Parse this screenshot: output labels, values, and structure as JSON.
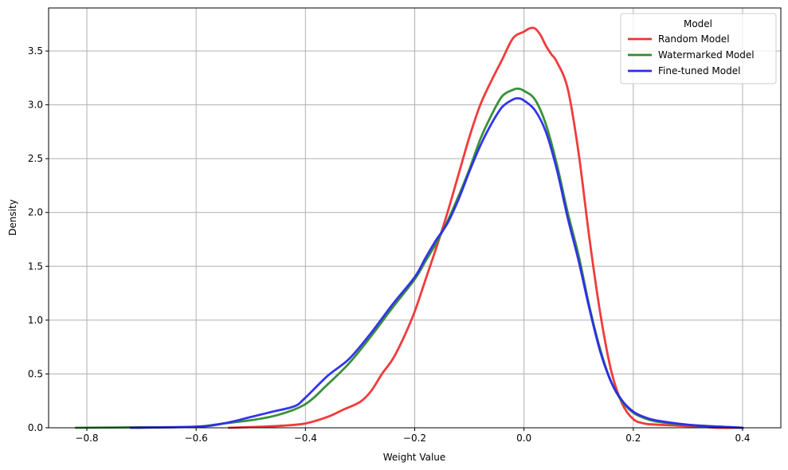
{
  "chart_data": {
    "type": "line",
    "xlabel": "Weight Value",
    "ylabel": "Density",
    "xlim": [
      -0.87,
      0.47
    ],
    "ylim": [
      0,
      3.9
    ],
    "xticks": [
      -0.8,
      -0.6,
      -0.4,
      -0.2,
      0.0,
      0.2,
      0.4
    ],
    "xtick_labels": [
      "−0.8",
      "−0.6",
      "−0.4",
      "−0.2",
      "0.0",
      "0.2",
      "0.4"
    ],
    "yticks": [
      0.0,
      0.5,
      1.0,
      1.5,
      2.0,
      2.5,
      3.0,
      3.5
    ],
    "ytick_labels": [
      "0.0",
      "0.5",
      "1.0",
      "1.5",
      "2.0",
      "2.5",
      "3.0",
      "3.5"
    ],
    "grid": true,
    "legend": {
      "title": "Model",
      "placement": "top-right"
    },
    "series": [
      {
        "name": "Random Model",
        "color": "#f03030",
        "x": [
          -0.54,
          -0.48,
          -0.44,
          -0.4,
          -0.36,
          -0.33,
          -0.3,
          -0.28,
          -0.26,
          -0.24,
          -0.22,
          -0.2,
          -0.18,
          -0.16,
          -0.14,
          -0.12,
          -0.1,
          -0.08,
          -0.06,
          -0.04,
          -0.02,
          0.0,
          0.01,
          0.02,
          0.03,
          0.04,
          0.05,
          0.06,
          0.08,
          0.1,
          0.12,
          0.14,
          0.16,
          0.18,
          0.2,
          0.22,
          0.24,
          0.28,
          0.32,
          0.36,
          0.4
        ],
        "y": [
          0.0,
          0.01,
          0.02,
          0.04,
          0.1,
          0.17,
          0.24,
          0.34,
          0.5,
          0.64,
          0.84,
          1.08,
          1.38,
          1.68,
          2.0,
          2.35,
          2.7,
          3.0,
          3.22,
          3.42,
          3.62,
          3.68,
          3.71,
          3.71,
          3.65,
          3.55,
          3.47,
          3.4,
          3.15,
          2.55,
          1.75,
          1.05,
          0.52,
          0.22,
          0.08,
          0.04,
          0.03,
          0.02,
          0.01,
          0.0,
          0.0
        ]
      },
      {
        "name": "Watermarked Model",
        "color": "#2e8b2e",
        "x": [
          -0.82,
          -0.7,
          -0.6,
          -0.55,
          -0.5,
          -0.45,
          -0.4,
          -0.36,
          -0.32,
          -0.28,
          -0.24,
          -0.2,
          -0.18,
          -0.16,
          -0.14,
          -0.12,
          -0.1,
          -0.08,
          -0.06,
          -0.04,
          -0.02,
          -0.01,
          0.0,
          0.02,
          0.04,
          0.06,
          0.08,
          0.1,
          0.12,
          0.14,
          0.16,
          0.18,
          0.2,
          0.22,
          0.24,
          0.28,
          0.32,
          0.36,
          0.4
        ],
        "y": [
          0.0,
          0.005,
          0.01,
          0.04,
          0.07,
          0.12,
          0.22,
          0.4,
          0.6,
          0.85,
          1.12,
          1.38,
          1.55,
          1.72,
          1.92,
          2.15,
          2.4,
          2.68,
          2.9,
          3.08,
          3.14,
          3.15,
          3.13,
          3.05,
          2.82,
          2.45,
          2.0,
          1.6,
          1.12,
          0.72,
          0.42,
          0.24,
          0.14,
          0.09,
          0.06,
          0.035,
          0.02,
          0.01,
          0.0
        ]
      },
      {
        "name": "Fine-tuned Model",
        "color": "#2a2aee",
        "x": [
          -0.72,
          -0.6,
          -0.55,
          -0.5,
          -0.46,
          -0.42,
          -0.4,
          -0.36,
          -0.32,
          -0.28,
          -0.24,
          -0.2,
          -0.18,
          -0.16,
          -0.14,
          -0.12,
          -0.1,
          -0.08,
          -0.06,
          -0.04,
          -0.02,
          -0.01,
          0.0,
          0.02,
          0.04,
          0.06,
          0.08,
          0.1,
          0.12,
          0.14,
          0.16,
          0.18,
          0.2,
          0.22,
          0.24,
          0.28,
          0.32,
          0.36,
          0.4
        ],
        "y": [
          0.0,
          0.01,
          0.04,
          0.1,
          0.15,
          0.2,
          0.28,
          0.48,
          0.64,
          0.88,
          1.15,
          1.4,
          1.58,
          1.75,
          1.9,
          2.12,
          2.38,
          2.62,
          2.82,
          2.98,
          3.05,
          3.06,
          3.04,
          2.95,
          2.75,
          2.4,
          1.95,
          1.55,
          1.1,
          0.7,
          0.42,
          0.25,
          0.15,
          0.1,
          0.07,
          0.04,
          0.02,
          0.01,
          0.0
        ]
      }
    ]
  }
}
